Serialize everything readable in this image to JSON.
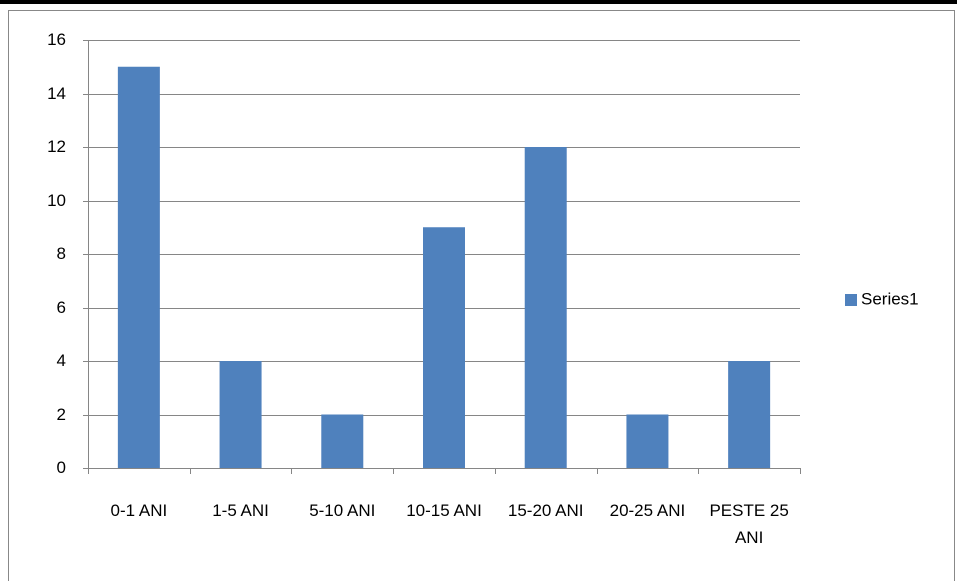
{
  "chart_data": {
    "type": "bar",
    "categories": [
      "0-1 ANI",
      "1-5 ANI",
      "5-10 ANI",
      "10-15 ANI",
      "15-20 ANI",
      "20-25 ANI",
      "PESTE 25 ANI"
    ],
    "series": [
      {
        "name": "Series1",
        "color": "#4f81bd",
        "values": [
          15,
          4,
          2,
          9,
          12,
          2,
          4
        ]
      }
    ],
    "ylim": [
      0,
      16
    ],
    "yticks": [
      0,
      2,
      4,
      6,
      8,
      10,
      12,
      14,
      16
    ],
    "grid": true,
    "legend": "right"
  }
}
